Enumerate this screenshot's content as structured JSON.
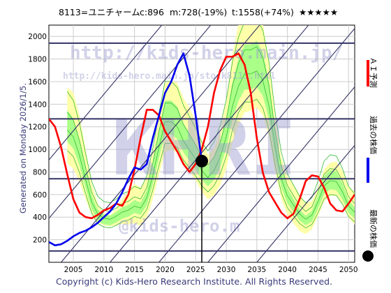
{
  "header": {
    "code_name": "8113=ユニチャーム",
    "close": "c:896",
    "mid": "m:728(-19%)",
    "target": "t:1558(+74%)",
    "stars": "★★★★★"
  },
  "side_note": "Generated on Monday 2026/1/5.",
  "copyright": "Copyright (c) Kids-Hero Research Institute. All Rights Reserved.",
  "watermarks": {
    "url1": "http://kids-hero.main.jp/",
    "url2": "http://kids-hero.main.jp/stock8113.html",
    "big": "KHRI",
    "handle": "@kids-hero.m"
  },
  "legend": {
    "ai_forecast": "ＡＩ予測",
    "past_price": "過去の株価",
    "latest_price": "最新の株価"
  },
  "colors": {
    "forecast": "#ff0000",
    "past": "#0000ee",
    "band_outer": "#ffffaa",
    "band_inner": "#aaff88",
    "band_lines": "#33bb33",
    "hlines": "#333366",
    "diag": "#333366"
  },
  "chart_data": {
    "type": "line",
    "xlim": [
      2001,
      2051
    ],
    "ylim": [
      0,
      2100
    ],
    "x_ticks": [
      "2005",
      "2010",
      "2015",
      "2020",
      "2025",
      "2030",
      "2035",
      "2040",
      "2045",
      "2050"
    ],
    "y_ticks": [
      "200",
      "400",
      "600",
      "800",
      "1000",
      "1200",
      "1400",
      "1600",
      "1800",
      "2000"
    ],
    "grid": true,
    "horizontal_levels": [
      1940,
      1270,
      740,
      100
    ],
    "latest": {
      "x": 2026.0,
      "y": 896
    },
    "series": [
      {
        "name": "ＡＩ予測",
        "x": [
          2001,
          2002,
          2003,
          2004,
          2005,
          2006,
          2007,
          2008,
          2009,
          2010,
          2011,
          2012,
          2013,
          2014,
          2015,
          2016,
          2017,
          2018,
          2019,
          2020,
          2021,
          2022,
          2023,
          2024,
          2025,
          2026,
          2027,
          2028,
          2029,
          2030,
          2031,
          2032,
          2033,
          2034,
          2035,
          2036,
          2037,
          2038,
          2039,
          2040,
          2041,
          2042,
          2043,
          2044,
          2045,
          2046,
          2047,
          2048,
          2049,
          2050,
          2051
        ],
        "y": [
          1270,
          1200,
          1020,
          780,
          560,
          440,
          400,
          390,
          420,
          460,
          480,
          520,
          500,
          600,
          820,
          1100,
          1350,
          1350,
          1300,
          1160,
          1070,
          980,
          870,
          800,
          870,
          1000,
          1200,
          1500,
          1700,
          1820,
          1820,
          1850,
          1750,
          1500,
          1100,
          790,
          620,
          530,
          440,
          390,
          430,
          560,
          720,
          770,
          760,
          660,
          520,
          460,
          450,
          520,
          600
        ]
      },
      {
        "name": "過去の株価",
        "x": [
          2001,
          2002,
          2003,
          2004,
          2005,
          2006,
          2007,
          2008,
          2009,
          2010,
          2011,
          2012,
          2013,
          2014,
          2015,
          2016,
          2017,
          2018,
          2019,
          2020,
          2021,
          2022,
          2023,
          2024,
          2025,
          2026
        ],
        "y": [
          180,
          150,
          160,
          190,
          230,
          260,
          280,
          310,
          350,
          400,
          450,
          520,
          620,
          740,
          840,
          820,
          870,
          1100,
          1300,
          1500,
          1600,
          1750,
          1850,
          1650,
          1300,
          896
        ]
      }
    ]
  }
}
